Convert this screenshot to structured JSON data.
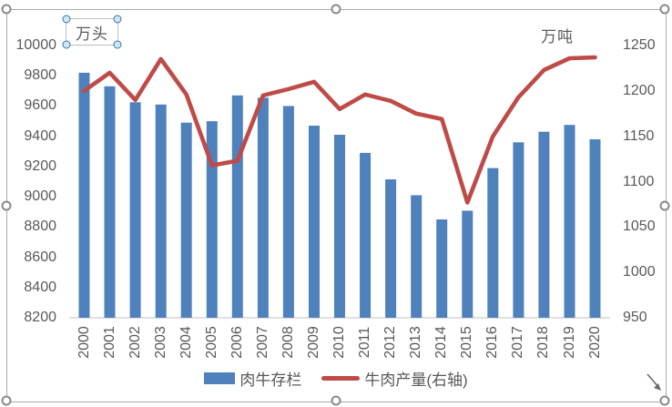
{
  "chart_data": {
    "type": "bar+line combo",
    "categories": [
      "2000",
      "2001",
      "2002",
      "2003",
      "2004",
      "2005",
      "2006",
      "2007",
      "2008",
      "2009",
      "2010",
      "2011",
      "2012",
      "2013",
      "2014",
      "2015",
      "2016",
      "2017",
      "2018",
      "2019",
      "2020"
    ],
    "series": [
      {
        "name": "肉牛存栏",
        "type": "bar",
        "axis": "left",
        "color": "#4F81BD",
        "values": [
          9820,
          9730,
          9625,
          9610,
          9490,
          9500,
          9670,
          9655,
          9600,
          9470,
          9410,
          9290,
          9115,
          9010,
          8850,
          8908,
          9190,
          9360,
          9430,
          9475,
          9380
        ]
      },
      {
        "name": "牛肉产量(右轴)",
        "type": "line",
        "axis": "right",
        "color": "#BE4B48",
        "values": [
          1200,
          1220,
          1190,
          1235,
          1196,
          1118,
          1123,
          1195,
          1202,
          1210,
          1180,
          1196,
          1189,
          1175,
          1169,
          1077,
          1150,
          1193,
          1223,
          1236,
          1237
        ]
      }
    ],
    "left_axis": {
      "title": "万头",
      "min": 8200,
      "max": 10000,
      "step": 200,
      "ticks": [
        10000,
        9800,
        9600,
        9400,
        9200,
        9000,
        8800,
        8600,
        8400,
        8200
      ]
    },
    "right_axis": {
      "title": "万吨",
      "min": 950,
      "max": 1250,
      "step": 50,
      "ticks": [
        1250,
        1200,
        1150,
        1100,
        1050,
        1000,
        950
      ]
    },
    "legend_position": "bottom",
    "grid": false
  },
  "colors": {
    "bar": "#4F81BD",
    "line": "#BE4B48",
    "axis_text": "#595959",
    "baseline": "#d6d6d6",
    "selection_border": "#ababab"
  }
}
